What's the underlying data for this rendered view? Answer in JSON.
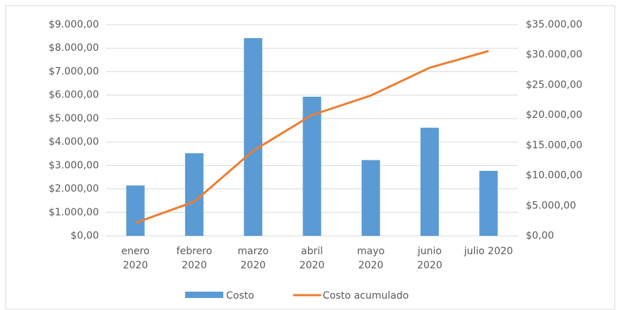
{
  "chart_data": {
    "type": "bar-line",
    "categories": [
      "enero 2020",
      "febrero 2020",
      "marzo 2020",
      "abril 2020",
      "mayo 2020",
      "junio 2020",
      "julio 2020"
    ],
    "series": [
      {
        "name": "Costo",
        "color": "#5b9bd5",
        "type": "bar",
        "axis": "y",
        "values": [
          2150,
          3520,
          8430,
          5930,
          3230,
          4610,
          2770
        ]
      },
      {
        "name": "Costo acumulado",
        "color": "#ed7d31",
        "type": "line",
        "axis": "y2",
        "values": [
          2150,
          5670,
          14100,
          20030,
          23260,
          27870,
          30640
        ]
      }
    ],
    "ylim": [
      0,
      9000
    ],
    "yticks": [
      {
        "value": 0,
        "label": "$0,00"
      },
      {
        "value": 1000,
        "label": "$1.000,00"
      },
      {
        "value": 2000,
        "label": "$2.000,00"
      },
      {
        "value": 3000,
        "label": "$3.000,00"
      },
      {
        "value": 4000,
        "label": "$4.000,00"
      },
      {
        "value": 5000,
        "label": "$5.000,00"
      },
      {
        "value": 6000,
        "label": "$6.000,00"
      },
      {
        "value": 7000,
        "label": "$7.000,00"
      },
      {
        "value": 8000,
        "label": "$8.000,00"
      },
      {
        "value": 9000,
        "label": "$9.000,00"
      }
    ],
    "y2lim": [
      0,
      35000
    ],
    "y2ticks": [
      {
        "value": 0,
        "label": "$0,00"
      },
      {
        "value": 5000,
        "label": "$5.000,00"
      },
      {
        "value": 10000,
        "label": "$10.000,00"
      },
      {
        "value": 15000,
        "label": "$15.000,00"
      },
      {
        "value": 20000,
        "label": "$20.000,00"
      },
      {
        "value": 25000,
        "label": "$25.000,00"
      },
      {
        "value": 30000,
        "label": "$30.000,00"
      },
      {
        "value": 35000,
        "label": "$35.000,00"
      }
    ],
    "grid": true,
    "legend": "bottom"
  }
}
